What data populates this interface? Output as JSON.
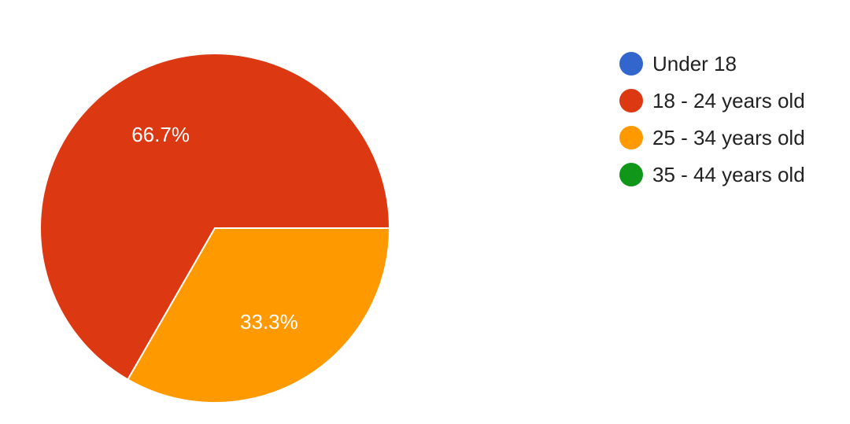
{
  "chart_data": {
    "type": "pie",
    "title": "",
    "legend_position": "right",
    "categories": [
      "Under 18",
      "18 - 24 years old",
      "25 - 34 years old",
      "35 - 44 years old"
    ],
    "values": [
      0,
      66.7,
      33.3,
      0
    ],
    "value_labels": [
      "",
      "66.7%",
      "33.3%",
      ""
    ],
    "colors": [
      "#3366cc",
      "#dc3912",
      "#ff9900",
      "#109618"
    ]
  }
}
